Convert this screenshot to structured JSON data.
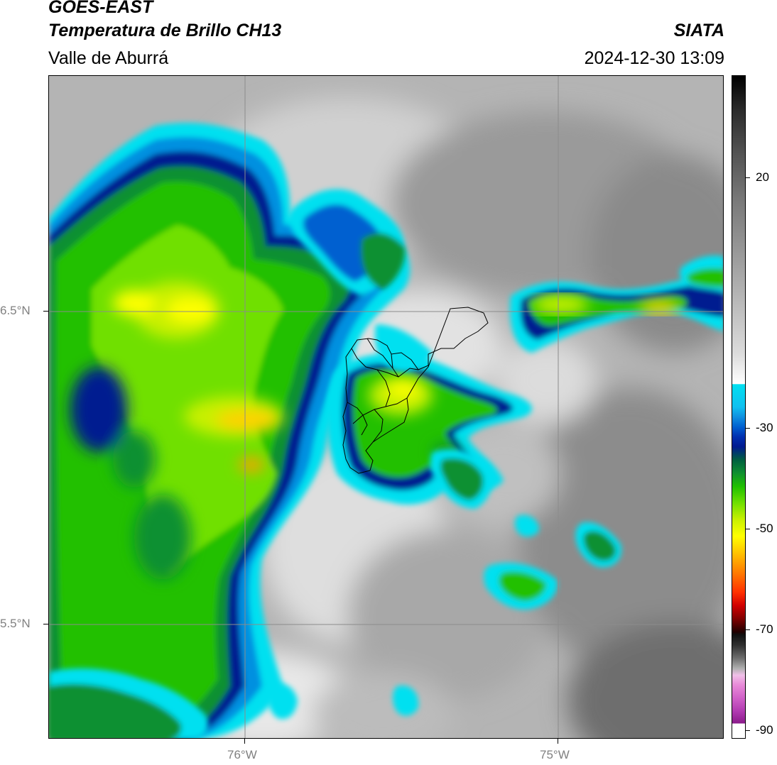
{
  "header": {
    "line1": "GOES-EAST",
    "line2": "Temperatura de Brillo CH13",
    "organization": "SIATA",
    "region": "Valle de Aburrá",
    "timestamp": "2024-12-30 13:09"
  },
  "map": {
    "lat_labels": [
      "6.5°N",
      "5.5°N"
    ],
    "lon_labels": [
      "76°W",
      "75°W"
    ]
  },
  "colorbar": {
    "tick_labels": [
      "20",
      "-30",
      "-50",
      "-70",
      "-90"
    ],
    "colors": {
      "warm_top": "#000000",
      "clear": "#ffffff",
      "cyan": "#00e0f0",
      "blue": "#001a90",
      "green": "#20c000",
      "yellow": "#ffff00",
      "red": "#d00000",
      "black": "#101010",
      "pink": "#e88ad8",
      "purple": "#8a1a8a"
    }
  }
}
